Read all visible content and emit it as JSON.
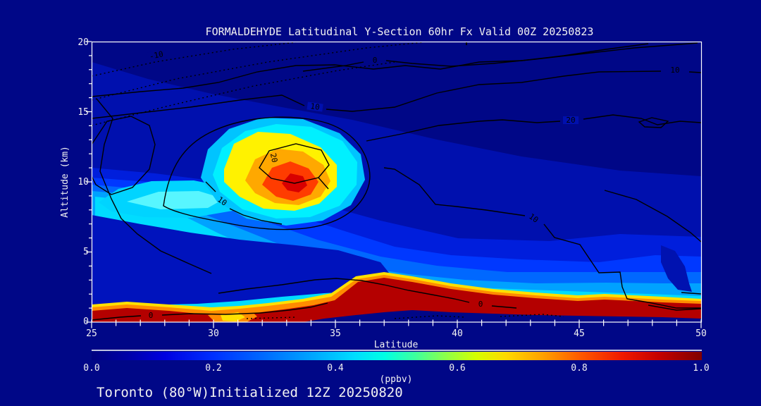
{
  "title": "FORMALDEHYDE Latitudinal Y-Section 60hr  Fx Valid 00Z 20250823",
  "footer": "Toronto (80°W)Initialized 12Z 20250820",
  "colors": {
    "background": "#000787",
    "frame": "#FFFFFF",
    "contour_line": "#000000",
    "hotspot_core": "#D80000",
    "surface_band": "#B40000",
    "cyan_plume": "#00D4FF"
  },
  "axes": {
    "x": {
      "label": "Latitude",
      "tick_labels": [
        "25",
        "30",
        "35",
        "40",
        "45",
        "50"
      ]
    },
    "y": {
      "label": "Altitude (km)",
      "tick_labels": [
        "20",
        "15",
        "10",
        "5",
        "0"
      ]
    }
  },
  "colorbar": {
    "unit": "(ppbv)",
    "tick_labels": [
      "0.0",
      "0.2",
      "0.4",
      "0.6",
      "0.8",
      "1.0"
    ],
    "min": 0.0,
    "max": 1.0,
    "palette": [
      "#000080",
      "#0000E0",
      "#0030FF",
      "#00A4FF",
      "#00DCFF",
      "#3DFF9E",
      "#D4FF00",
      "#FFD800",
      "#FF5A00",
      "#F01800",
      "#800000"
    ]
  },
  "contour_labels": [
    {
      "value": "-10"
    },
    {
      "value": "0"
    },
    {
      "value": "10"
    },
    {
      "value": "10"
    },
    {
      "value": "20"
    },
    {
      "value": "10"
    },
    {
      "value": "20"
    },
    {
      "value": "10"
    },
    {
      "value": "0"
    },
    {
      "value": "0"
    }
  ],
  "chart_data": {
    "type": "heatmap",
    "subtype": "filled-contour latitude-altitude cross-section",
    "species": "FORMALDEHYDE",
    "forecast_hour": "60hr",
    "valid_time": "00Z 20250823",
    "initialized_time": "12Z 20250820",
    "station": "Toronto (80°W)",
    "xlabel": "Latitude",
    "x_range": [
      25,
      50
    ],
    "x_ticks": [
      25,
      30,
      35,
      40,
      45,
      50
    ],
    "x_minor_tick_step": 1,
    "ylabel": "Altitude (km)",
    "y_range": [
      0,
      20
    ],
    "y_ticks": [
      0,
      5,
      10,
      15,
      20
    ],
    "y_minor_tick_step": 1,
    "fill_unit": "ppbv",
    "fill_range": [
      0.0,
      1.0
    ],
    "fill_ticks": [
      0.0,
      0.2,
      0.4,
      0.6,
      0.8,
      1.0
    ],
    "line_contour_values": [
      -10,
      0,
      10,
      20
    ],
    "dashed_contours": "negative values (upper-left, -10)",
    "features": [
      {
        "name": "mid-level plume maximum",
        "lat_range": [
          30,
          34.5
        ],
        "alt_km_range": [
          8,
          13
        ],
        "peak_value_ppbv": 1.0,
        "center": {
          "lat": 32.5,
          "alt_km": 10.5
        }
      },
      {
        "name": "boundary-layer maximum band",
        "lat_range": [
          31,
          50
        ],
        "alt_km_range": [
          0.3,
          3
        ],
        "peak_value_ppbv": 1.0
      },
      {
        "name": "surface band left segment",
        "lat_range": [
          25,
          30
        ],
        "alt_km_range": [
          0,
          0.8
        ],
        "peak_value_ppbv": 1.0
      },
      {
        "name": "cyan mid-left plume",
        "lat_range": [
          25,
          31.5
        ],
        "alt_km_range": [
          7.5,
          10
        ],
        "value_ppbv": 0.45
      },
      {
        "name": "upper-troposphere background",
        "lat_range": [
          25,
          50
        ],
        "alt_km_range": [
          13,
          20
        ],
        "value_ppbv": 0.05
      },
      {
        "name": "clean near-surface strip (right)",
        "lat_range": [
          33.7,
          50
        ],
        "alt_km_range": [
          0,
          0.5
        ],
        "value_ppbv": 0.05
      }
    ],
    "legend_position": "bottom colorbar",
    "grid": false
  }
}
